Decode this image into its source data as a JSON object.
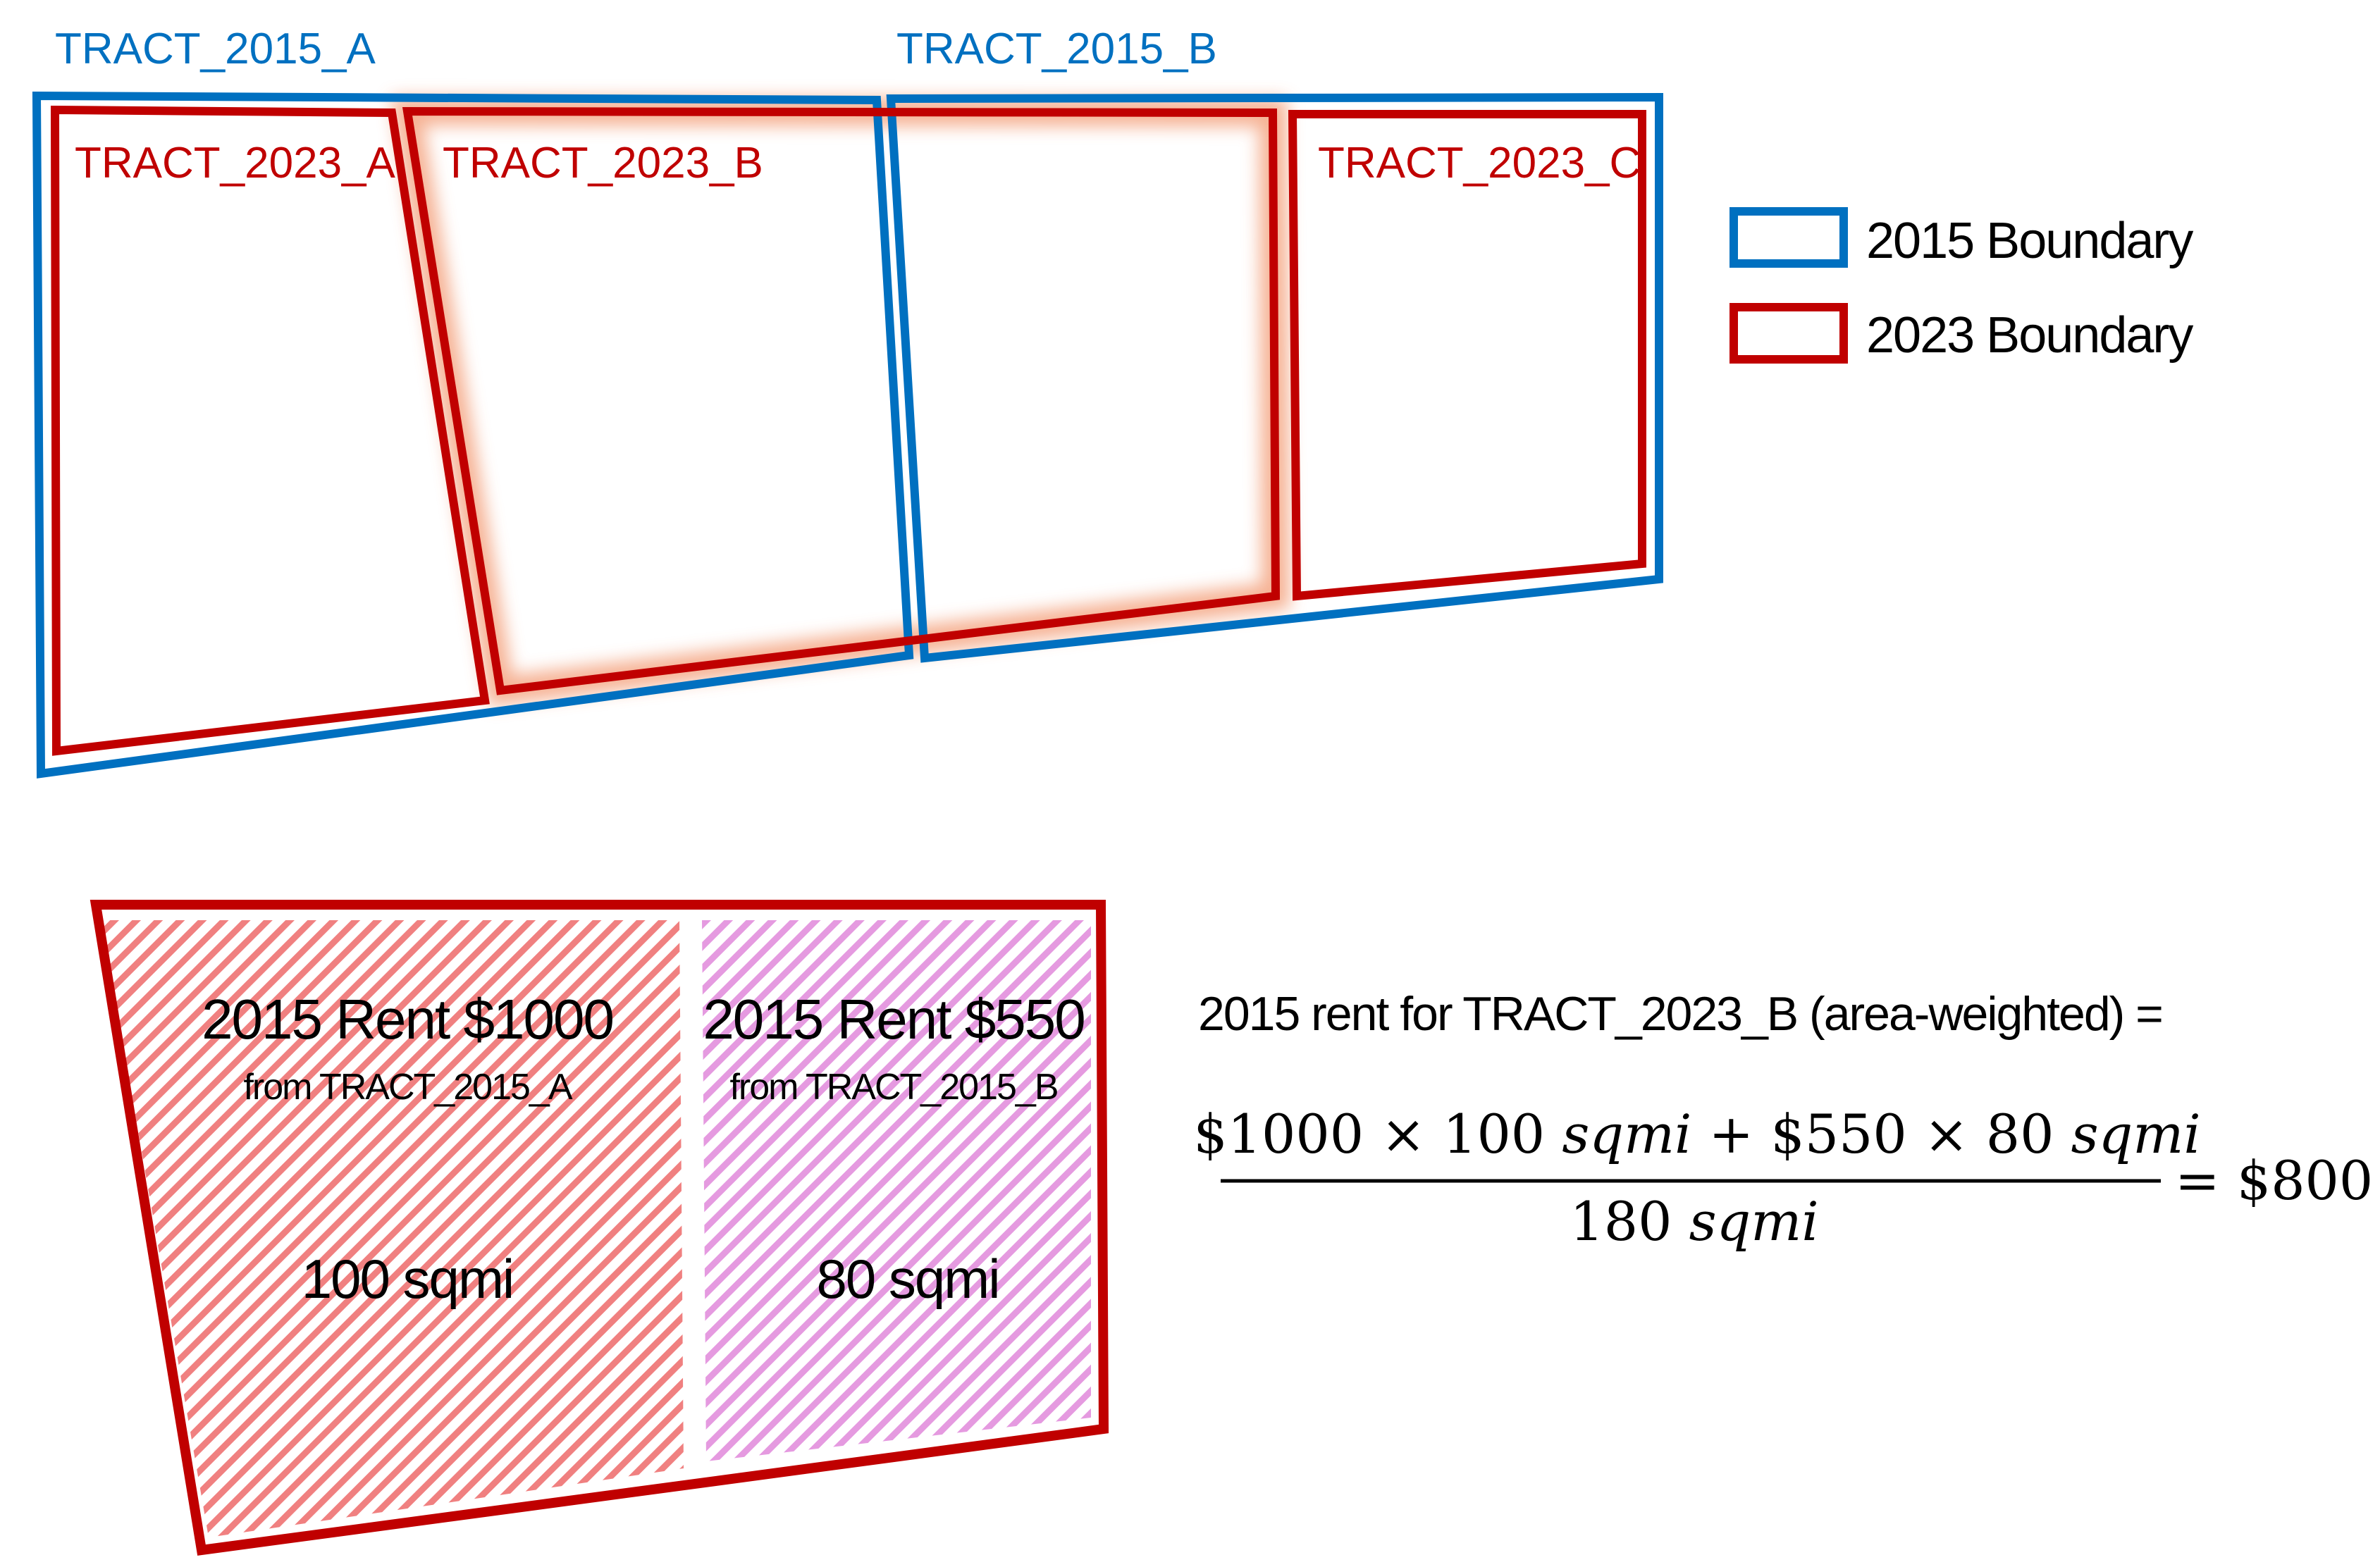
{
  "colors": {
    "boundary_2015": "#0070c0",
    "boundary_2023": "#c00000",
    "glow": "#f4a582",
    "hatch_a": "#f08080",
    "hatch_b": "#e59ae0"
  },
  "map": {
    "tract_2015_a": "TRACT_2015_A",
    "tract_2015_b": "TRACT_2015_B",
    "tract_2023_a": "TRACT_2023_A",
    "tract_2023_b": "TRACT_2023_B",
    "tract_2023_c": "TRACT_2023_C"
  },
  "legend": {
    "item_2015": "2015 Boundary",
    "item_2023": "2023 Boundary"
  },
  "detail": {
    "part_a": {
      "rent": "2015 Rent $1000",
      "source": "from TRACT_2015_A",
      "area": "100 sqmi"
    },
    "part_b": {
      "rent": "2015 Rent $550",
      "source": "from TRACT_2015_B",
      "area": "80 sqmi"
    }
  },
  "formula": {
    "heading": "2015 rent for TRACT_2023_B (area-weighted) =",
    "numerator_term1": "$1000 × 100 ",
    "numerator_unit1": "sqmi",
    "numerator_plus": " + $550 × 80 ",
    "numerator_unit2": "sqmi",
    "denominator_value": "180 ",
    "denominator_unit": "sqmi",
    "result": "= $800"
  }
}
